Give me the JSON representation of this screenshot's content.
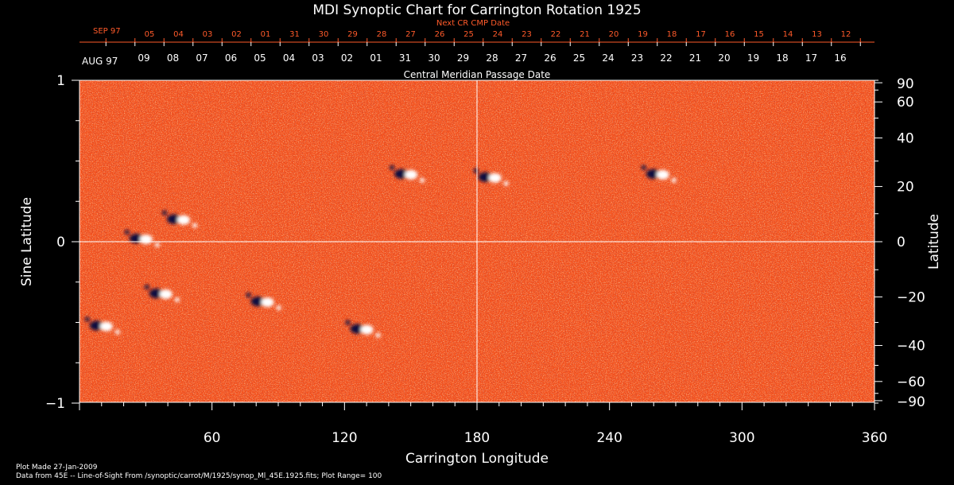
{
  "chart_data": {
    "type": "heatmap",
    "title": "MDI Synoptic Chart for Carrington Rotation 1925",
    "xlabel": "Carrington Longitude",
    "ylabel_left": "Sine Latitude",
    "ylabel_right": "Latitude",
    "xlim": [
      0,
      360
    ],
    "ylim": [
      -1,
      1
    ],
    "x_ticks": [
      "60",
      "120",
      "180",
      "240",
      "300",
      "360"
    ],
    "left_ticks": [
      "1",
      "0",
      "−1"
    ],
    "right_ticks": [
      "90",
      "60",
      "40",
      "20",
      "0",
      "−20",
      "−40",
      "−60",
      "−90"
    ],
    "next_cr_label": "Next CR CMP Date",
    "next_cr_month": "SEP 97",
    "next_cr_dates": [
      "05",
      "04",
      "03",
      "02",
      "01",
      "31",
      "30",
      "29",
      "28",
      "27",
      "26",
      "25",
      "24",
      "23",
      "22",
      "21",
      "20",
      "19",
      "18",
      "17",
      "16",
      "15",
      "14",
      "13",
      "12"
    ],
    "cmp_label": "Central Meridian Passage Date",
    "cmp_month": "AUG 97",
    "cmp_dates": [
      "09",
      "08",
      "07",
      "06",
      "05",
      "04",
      "03",
      "02",
      "01",
      "31",
      "30",
      "29",
      "28",
      "27",
      "26",
      "25",
      "24",
      "23",
      "22",
      "21",
      "20",
      "19",
      "18",
      "17",
      "16"
    ],
    "plot_made": "Plot Made 27-Jan-2009",
    "data_source": "Data from 45E -- Line-of-Sight From /synoptic/carrot/M/1925/synop_Ml_45E.1925.fits; Plot Range= 100",
    "colors": {
      "background": "#000000",
      "field": "#ff5a1a",
      "positive": "#ffffff",
      "negative": "#0a0a40",
      "grid": "#ffffff"
    },
    "active_regions": [
      {
        "lon": 148,
        "sinlat": 0.42,
        "polarity": "bipolar"
      },
      {
        "lon": 186,
        "sinlat": 0.4,
        "polarity": "bipolar"
      },
      {
        "lon": 262,
        "sinlat": 0.42,
        "polarity": "bipolar"
      },
      {
        "lon": 28,
        "sinlat": 0.02,
        "polarity": "bipolar"
      },
      {
        "lon": 45,
        "sinlat": 0.14,
        "polarity": "bipolar"
      },
      {
        "lon": 37,
        "sinlat": -0.32,
        "polarity": "bipolar"
      },
      {
        "lon": 83,
        "sinlat": -0.37,
        "polarity": "bipolar"
      },
      {
        "lon": 128,
        "sinlat": -0.54,
        "polarity": "bipolar"
      },
      {
        "lon": 10,
        "sinlat": -0.52,
        "polarity": "bipolar"
      }
    ]
  }
}
